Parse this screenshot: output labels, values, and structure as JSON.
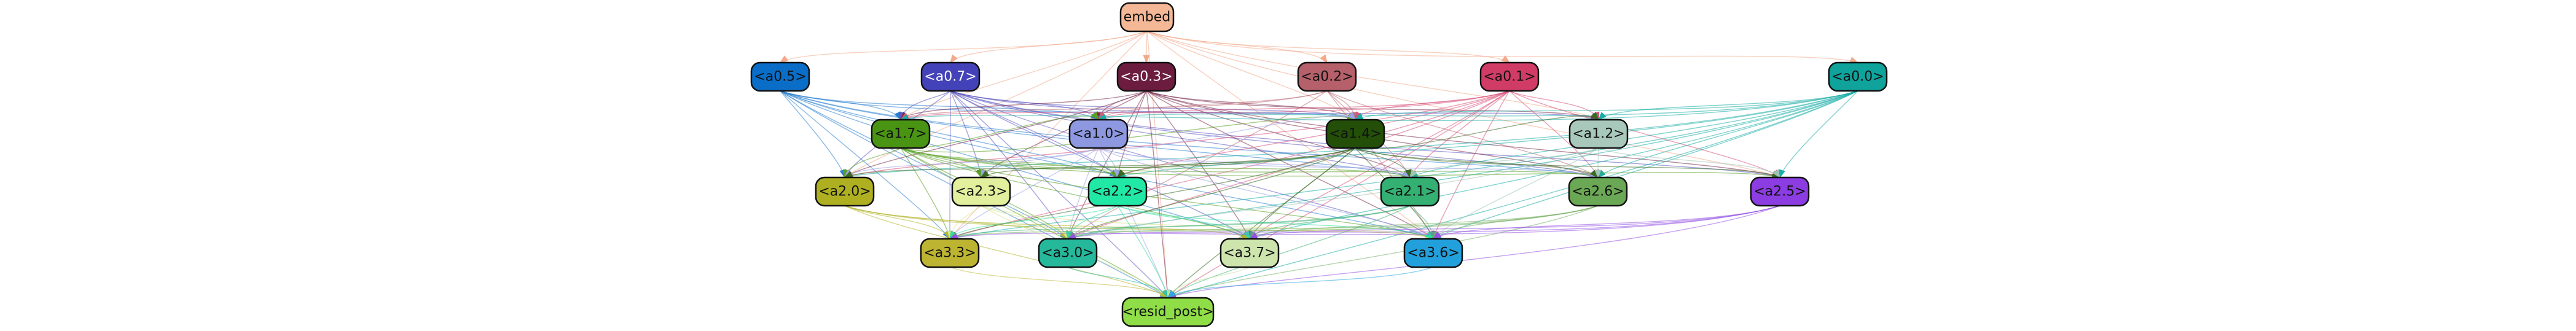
{
  "graph": {
    "nodes": [
      {
        "id": "embed",
        "label": "embed",
        "fill": "#f5b896",
        "text": "#111111"
      },
      {
        "id": "a05",
        "label": "<a0.5>",
        "fill": "#0a6ec9",
        "text": "#111111"
      },
      {
        "id": "a07",
        "label": "<a0.7>",
        "fill": "#4442b8",
        "text": "#ffffff"
      },
      {
        "id": "a03",
        "label": "<a0.3>",
        "fill": "#6c1c3f",
        "text": "#ffffff"
      },
      {
        "id": "a02",
        "label": "<a0.2>",
        "fill": "#b5606a",
        "text": "#111111"
      },
      {
        "id": "a01",
        "label": "<a0.1>",
        "fill": "#d03c66",
        "text": "#111111"
      },
      {
        "id": "a00",
        "label": "<a0.0>",
        "fill": "#0fa39c",
        "text": "#111111"
      },
      {
        "id": "a17",
        "label": "<a1.7>",
        "fill": "#4a9414",
        "text": "#111111"
      },
      {
        "id": "a10",
        "label": "<a1.0>",
        "fill": "#8d98e0",
        "text": "#111111"
      },
      {
        "id": "a14",
        "label": "<a1.4>",
        "fill": "#234f08",
        "text": "#111111"
      },
      {
        "id": "a12",
        "label": "<a1.2>",
        "fill": "#a8c8bc",
        "text": "#111111"
      },
      {
        "id": "a20",
        "label": "<a2.0>",
        "fill": "#aeb022",
        "text": "#111111"
      },
      {
        "id": "a23",
        "label": "<a2.3>",
        "fill": "#e2ef9c",
        "text": "#111111"
      },
      {
        "id": "a22",
        "label": "<a2.2>",
        "fill": "#22e8a6",
        "text": "#111111"
      },
      {
        "id": "a21",
        "label": "<a2.1>",
        "fill": "#34b072",
        "text": "#111111"
      },
      {
        "id": "a26",
        "label": "<a2.6>",
        "fill": "#6ba855",
        "text": "#111111"
      },
      {
        "id": "a25",
        "label": "<a2.5>",
        "fill": "#8b3de2",
        "text": "#111111"
      },
      {
        "id": "a33",
        "label": "<a3.3>",
        "fill": "#bdb431",
        "text": "#111111"
      },
      {
        "id": "a30",
        "label": "<a3.0>",
        "fill": "#25b89b",
        "text": "#111111"
      },
      {
        "id": "a37",
        "label": "<a3.7>",
        "fill": "#cde5ad",
        "text": "#111111"
      },
      {
        "id": "a36",
        "label": "<a3.6>",
        "fill": "#22a0dc",
        "text": "#111111"
      },
      {
        "id": "resid",
        "label": "<resid_post>",
        "fill": "#8fdd47",
        "text": "#111111"
      }
    ],
    "edges": [
      {
        "from": "embed",
        "to": "a05",
        "color": "#f3a98a"
      },
      {
        "from": "embed",
        "to": "a07",
        "color": "#f3a98a"
      },
      {
        "from": "embed",
        "to": "a03",
        "color": "#f3a98a"
      },
      {
        "from": "embed",
        "to": "a02",
        "color": "#f3a98a"
      },
      {
        "from": "embed",
        "to": "a01",
        "color": "#f3a98a"
      },
      {
        "from": "embed",
        "to": "a00",
        "color": "#f3a98a"
      },
      {
        "from": "embed",
        "to": "a17",
        "color": "#f3a98a"
      },
      {
        "from": "embed",
        "to": "a14",
        "color": "#f3a98a"
      },
      {
        "from": "embed",
        "to": "a12",
        "color": "#f3a98a"
      },
      {
        "from": "embed",
        "to": "a20",
        "color": "#f3a98a"
      },
      {
        "from": "embed",
        "to": "a25",
        "color": "#f3a98a"
      },
      {
        "from": "embed",
        "to": "a33",
        "color": "#f3a98a"
      },
      {
        "from": "embed",
        "to": "a36",
        "color": "#f3a98a"
      },
      {
        "from": "embed",
        "to": "resid",
        "color": "#f3a98a"
      },
      {
        "from": "a05",
        "to": "a17",
        "color": "#2a7fd0"
      },
      {
        "from": "a05",
        "to": "a10",
        "color": "#2a7fd0"
      },
      {
        "from": "a05",
        "to": "a14",
        "color": "#2a7fd0"
      },
      {
        "from": "a05",
        "to": "a20",
        "color": "#2a7fd0"
      },
      {
        "from": "a05",
        "to": "a22",
        "color": "#2a7fd0"
      },
      {
        "from": "a05",
        "to": "a21",
        "color": "#2a7fd0"
      },
      {
        "from": "a05",
        "to": "a26",
        "color": "#2a7fd0"
      },
      {
        "from": "a05",
        "to": "a33",
        "color": "#2a7fd0"
      },
      {
        "from": "a05",
        "to": "a30",
        "color": "#2a7fd0"
      },
      {
        "from": "a05",
        "to": "a37",
        "color": "#2a7fd0"
      },
      {
        "from": "a05",
        "to": "a36",
        "color": "#2a7fd0"
      },
      {
        "from": "a05",
        "to": "resid",
        "color": "#2a7fd0"
      },
      {
        "from": "a07",
        "to": "a17",
        "color": "#5b58c0"
      },
      {
        "from": "a07",
        "to": "a10",
        "color": "#5b58c0"
      },
      {
        "from": "a07",
        "to": "a14",
        "color": "#5b58c0"
      },
      {
        "from": "a07",
        "to": "a12",
        "color": "#5b58c0"
      },
      {
        "from": "a07",
        "to": "a20",
        "color": "#5b58c0"
      },
      {
        "from": "a07",
        "to": "a23",
        "color": "#5b58c0"
      },
      {
        "from": "a07",
        "to": "a22",
        "color": "#5b58c0"
      },
      {
        "from": "a07",
        "to": "a21",
        "color": "#5b58c0"
      },
      {
        "from": "a07",
        "to": "a26",
        "color": "#5b58c0"
      },
      {
        "from": "a07",
        "to": "a25",
        "color": "#5b58c0"
      },
      {
        "from": "a07",
        "to": "a33",
        "color": "#5b58c0"
      },
      {
        "from": "a07",
        "to": "a30",
        "color": "#5b58c0"
      },
      {
        "from": "a07",
        "to": "a37",
        "color": "#5b58c0"
      },
      {
        "from": "a07",
        "to": "a36",
        "color": "#5b58c0"
      },
      {
        "from": "a07",
        "to": "resid",
        "color": "#5b58c0"
      },
      {
        "from": "a03",
        "to": "a17",
        "color": "#7a2a4c"
      },
      {
        "from": "a03",
        "to": "a10",
        "color": "#7a2a4c"
      },
      {
        "from": "a03",
        "to": "a14",
        "color": "#7a2a4c"
      },
      {
        "from": "a03",
        "to": "a12",
        "color": "#7a2a4c"
      },
      {
        "from": "a03",
        "to": "a20",
        "color": "#7a2a4c"
      },
      {
        "from": "a03",
        "to": "a23",
        "color": "#7a2a4c"
      },
      {
        "from": "a03",
        "to": "a22",
        "color": "#7a2a4c"
      },
      {
        "from": "a03",
        "to": "a21",
        "color": "#7a2a4c"
      },
      {
        "from": "a03",
        "to": "a26",
        "color": "#7a2a4c"
      },
      {
        "from": "a03",
        "to": "a25",
        "color": "#7a2a4c"
      },
      {
        "from": "a03",
        "to": "a30",
        "color": "#7a2a4c"
      },
      {
        "from": "a03",
        "to": "a37",
        "color": "#7a2a4c"
      },
      {
        "from": "a03",
        "to": "a36",
        "color": "#7a2a4c"
      },
      {
        "from": "a03",
        "to": "resid",
        "color": "#7a2a4c"
      },
      {
        "from": "a02",
        "to": "a17",
        "color": "#c0707a"
      },
      {
        "from": "a02",
        "to": "a10",
        "color": "#c0707a"
      },
      {
        "from": "a02",
        "to": "a14",
        "color": "#c0707a"
      },
      {
        "from": "a02",
        "to": "a21",
        "color": "#c0707a"
      },
      {
        "from": "a02",
        "to": "a26",
        "color": "#c0707a"
      },
      {
        "from": "a02",
        "to": "a30",
        "color": "#c0707a"
      },
      {
        "from": "a02",
        "to": "a36",
        "color": "#c0707a"
      },
      {
        "from": "a01",
        "to": "a17",
        "color": "#d8507a"
      },
      {
        "from": "a01",
        "to": "a10",
        "color": "#d8507a"
      },
      {
        "from": "a01",
        "to": "a14",
        "color": "#d8507a"
      },
      {
        "from": "a01",
        "to": "a12",
        "color": "#d8507a"
      },
      {
        "from": "a01",
        "to": "a20",
        "color": "#d8507a"
      },
      {
        "from": "a01",
        "to": "a22",
        "color": "#d8507a"
      },
      {
        "from": "a01",
        "to": "a21",
        "color": "#d8507a"
      },
      {
        "from": "a01",
        "to": "a26",
        "color": "#d8507a"
      },
      {
        "from": "a01",
        "to": "a25",
        "color": "#d8507a"
      },
      {
        "from": "a01",
        "to": "a33",
        "color": "#d8507a"
      },
      {
        "from": "a01",
        "to": "a30",
        "color": "#d8507a"
      },
      {
        "from": "a01",
        "to": "a37",
        "color": "#d8507a"
      },
      {
        "from": "a01",
        "to": "a36",
        "color": "#d8507a"
      },
      {
        "from": "a01",
        "to": "resid",
        "color": "#d8507a"
      },
      {
        "from": "a00",
        "to": "a17",
        "color": "#1aada5"
      },
      {
        "from": "a00",
        "to": "a10",
        "color": "#1aada5"
      },
      {
        "from": "a00",
        "to": "a14",
        "color": "#1aada5"
      },
      {
        "from": "a00",
        "to": "a12",
        "color": "#1aada5"
      },
      {
        "from": "a00",
        "to": "a20",
        "color": "#1aada5"
      },
      {
        "from": "a00",
        "to": "a22",
        "color": "#1aada5"
      },
      {
        "from": "a00",
        "to": "a21",
        "color": "#1aada5"
      },
      {
        "from": "a00",
        "to": "a26",
        "color": "#1aada5"
      },
      {
        "from": "a00",
        "to": "a25",
        "color": "#1aada5"
      },
      {
        "from": "a00",
        "to": "a33",
        "color": "#1aada5"
      },
      {
        "from": "a00",
        "to": "a30",
        "color": "#1aada5"
      },
      {
        "from": "a00",
        "to": "a37",
        "color": "#1aada5"
      },
      {
        "from": "a00",
        "to": "a36",
        "color": "#1aada5"
      },
      {
        "from": "a00",
        "to": "resid",
        "color": "#1aada5"
      },
      {
        "from": "a17",
        "to": "a10",
        "color": "#5aa024"
      },
      {
        "from": "a17",
        "to": "a14",
        "color": "#5aa024"
      },
      {
        "from": "a17",
        "to": "a20",
        "color": "#5aa024"
      },
      {
        "from": "a17",
        "to": "a23",
        "color": "#5aa024"
      },
      {
        "from": "a17",
        "to": "a22",
        "color": "#5aa024"
      },
      {
        "from": "a17",
        "to": "a21",
        "color": "#5aa024"
      },
      {
        "from": "a17",
        "to": "a26",
        "color": "#5aa024"
      },
      {
        "from": "a17",
        "to": "a25",
        "color": "#5aa024"
      },
      {
        "from": "a17",
        "to": "a33",
        "color": "#5aa024"
      },
      {
        "from": "a17",
        "to": "a30",
        "color": "#5aa024"
      },
      {
        "from": "a17",
        "to": "a37",
        "color": "#5aa024"
      },
      {
        "from": "a17",
        "to": "a36",
        "color": "#5aa024"
      },
      {
        "from": "a17",
        "to": "resid",
        "color": "#5aa024"
      },
      {
        "from": "a10",
        "to": "a14",
        "color": "#9aa4e4"
      },
      {
        "from": "a10",
        "to": "a20",
        "color": "#9aa4e4"
      },
      {
        "from": "a10",
        "to": "a23",
        "color": "#9aa4e4"
      },
      {
        "from": "a10",
        "to": "a22",
        "color": "#9aa4e4"
      },
      {
        "from": "a10",
        "to": "a21",
        "color": "#9aa4e4"
      },
      {
        "from": "a10",
        "to": "a26",
        "color": "#9aa4e4"
      },
      {
        "from": "a10",
        "to": "a33",
        "color": "#9aa4e4"
      },
      {
        "from": "a10",
        "to": "a30",
        "color": "#9aa4e4"
      },
      {
        "from": "a10",
        "to": "a36",
        "color": "#9aa4e4"
      },
      {
        "from": "a10",
        "to": "resid",
        "color": "#9aa4e4"
      },
      {
        "from": "a14",
        "to": "a12",
        "color": "#3a6a20"
      },
      {
        "from": "a14",
        "to": "a20",
        "color": "#3a6a20"
      },
      {
        "from": "a14",
        "to": "a23",
        "color": "#3a6a20"
      },
      {
        "from": "a14",
        "to": "a22",
        "color": "#3a6a20"
      },
      {
        "from": "a14",
        "to": "a21",
        "color": "#3a6a20"
      },
      {
        "from": "a14",
        "to": "a26",
        "color": "#3a6a20"
      },
      {
        "from": "a14",
        "to": "a25",
        "color": "#3a6a20"
      },
      {
        "from": "a14",
        "to": "a33",
        "color": "#3a6a20"
      },
      {
        "from": "a14",
        "to": "a30",
        "color": "#3a6a20"
      },
      {
        "from": "a14",
        "to": "a37",
        "color": "#3a6a20"
      },
      {
        "from": "a14",
        "to": "a36",
        "color": "#3a6a20"
      },
      {
        "from": "a14",
        "to": "resid",
        "color": "#3a6a20"
      },
      {
        "from": "a12",
        "to": "a21",
        "color": "#a0c4b6"
      },
      {
        "from": "a12",
        "to": "a26",
        "color": "#a0c4b6"
      },
      {
        "from": "a12",
        "to": "a25",
        "color": "#a0c4b6"
      },
      {
        "from": "a12",
        "to": "a30",
        "color": "#a0c4b6"
      },
      {
        "from": "a12",
        "to": "a36",
        "color": "#a0c4b6"
      },
      {
        "from": "a20",
        "to": "a33",
        "color": "#b4b630"
      },
      {
        "from": "a20",
        "to": "a30",
        "color": "#b4b630"
      },
      {
        "from": "a20",
        "to": "a37",
        "color": "#b4b630"
      },
      {
        "from": "a20",
        "to": "a36",
        "color": "#b4b630"
      },
      {
        "from": "a20",
        "to": "resid",
        "color": "#b4b630"
      },
      {
        "from": "a23",
        "to": "a33",
        "color": "#d6e68a"
      },
      {
        "from": "a23",
        "to": "a30",
        "color": "#d6e68a"
      },
      {
        "from": "a23",
        "to": "a36",
        "color": "#d6e68a"
      },
      {
        "from": "a23",
        "to": "resid",
        "color": "#d6e68a"
      },
      {
        "from": "a22",
        "to": "a33",
        "color": "#30dea2"
      },
      {
        "from": "a22",
        "to": "a30",
        "color": "#30dea2"
      },
      {
        "from": "a22",
        "to": "a37",
        "color": "#30dea2"
      },
      {
        "from": "a22",
        "to": "a36",
        "color": "#30dea2"
      },
      {
        "from": "a22",
        "to": "resid",
        "color": "#30dea2"
      },
      {
        "from": "a21",
        "to": "a33",
        "color": "#44b47c"
      },
      {
        "from": "a21",
        "to": "a30",
        "color": "#44b47c"
      },
      {
        "from": "a21",
        "to": "a37",
        "color": "#44b47c"
      },
      {
        "from": "a21",
        "to": "a36",
        "color": "#44b47c"
      },
      {
        "from": "a21",
        "to": "resid",
        "color": "#44b47c"
      },
      {
        "from": "a26",
        "to": "a33",
        "color": "#78b064"
      },
      {
        "from": "a26",
        "to": "a30",
        "color": "#78b064"
      },
      {
        "from": "a26",
        "to": "a37",
        "color": "#78b064"
      },
      {
        "from": "a26",
        "to": "a36",
        "color": "#78b064"
      },
      {
        "from": "a26",
        "to": "resid",
        "color": "#78b064"
      },
      {
        "from": "a25",
        "to": "a33",
        "color": "#9450e4"
      },
      {
        "from": "a25",
        "to": "a30",
        "color": "#9450e4"
      },
      {
        "from": "a25",
        "to": "a37",
        "color": "#9450e4"
      },
      {
        "from": "a25",
        "to": "a36",
        "color": "#9450e4"
      },
      {
        "from": "a25",
        "to": "resid",
        "color": "#9450e4"
      },
      {
        "from": "a33",
        "to": "resid",
        "color": "#c2ba40"
      },
      {
        "from": "a30",
        "to": "resid",
        "color": "#34c0a4"
      },
      {
        "from": "a37",
        "to": "resid",
        "color": "#c4e0a0"
      },
      {
        "from": "a36",
        "to": "resid",
        "color": "#30a8e0"
      }
    ]
  }
}
